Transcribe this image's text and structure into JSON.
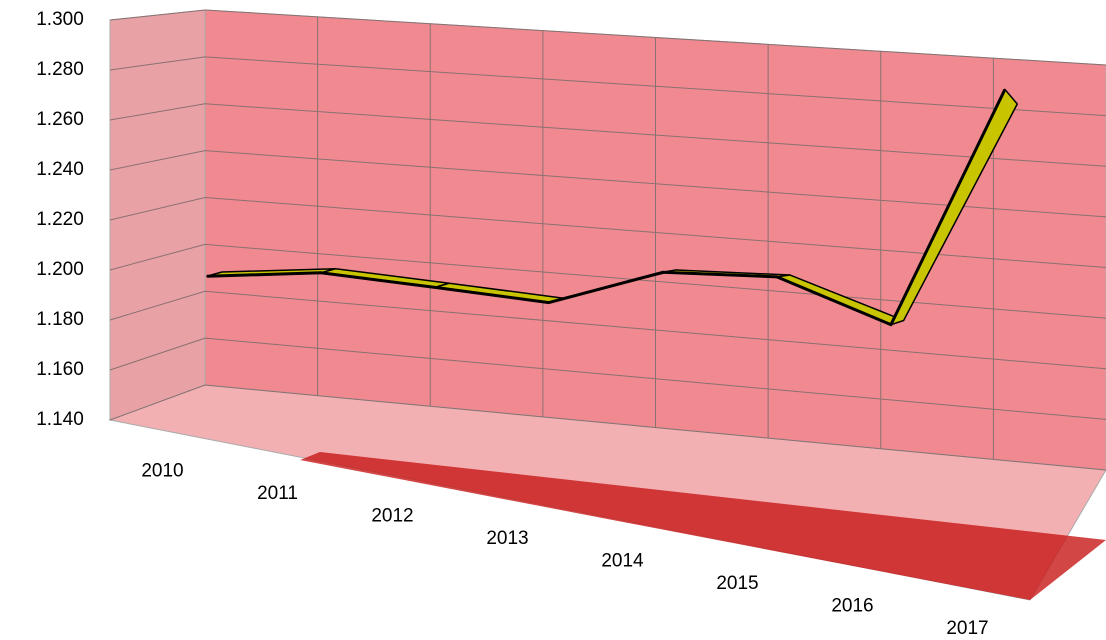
{
  "chart_data": {
    "type": "line3d",
    "categories": [
      "2010",
      "2011",
      "2012",
      "2013",
      "2014",
      "2015",
      "2016",
      "2017"
    ],
    "values": [
      1.195,
      1.2,
      1.198,
      1.196,
      1.209,
      1.21,
      1.198,
      1.268
    ],
    "color": "#c9c400",
    "ylim": [
      1.14,
      1.3
    ],
    "yticks": [
      {
        "value": 1.14,
        "label": "1.140"
      },
      {
        "value": 1.16,
        "label": "1.160"
      },
      {
        "value": 1.18,
        "label": "1.180"
      },
      {
        "value": 1.2,
        "label": "1.200"
      },
      {
        "value": 1.22,
        "label": "1.220"
      },
      {
        "value": 1.24,
        "label": "1.240"
      },
      {
        "value": 1.26,
        "label": "1.260"
      },
      {
        "value": 1.28,
        "label": "1.280"
      },
      {
        "value": 1.3,
        "label": "1.300"
      }
    ],
    "grid": true
  }
}
